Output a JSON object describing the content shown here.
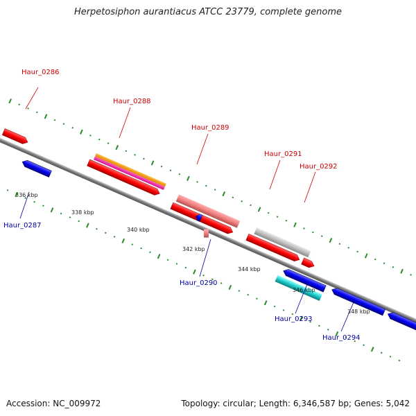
{
  "title": "Herpetosiphon aurantiacus ATCC 23779, complete genome",
  "footer": {
    "accession": "Accession: NC_009972",
    "summary": "Topology: circular; Length: 6,346,587 bp; Genes: 5,042"
  },
  "colors": {
    "forward_gene": "#ff0000",
    "reverse_gene": "#0000ff",
    "label_forward": "#cc0000",
    "label_reverse": "#000099",
    "tick_color": "#2a8a2a",
    "backbone": "#808080"
  },
  "ticks": [
    "336 kbp",
    "338 kbp",
    "340 kbp",
    "342 kbp",
    "344 kbp",
    "346 kbp",
    "348 kbp"
  ],
  "genes": [
    {
      "label": "Haur_0286",
      "strand": "forward"
    },
    {
      "label": "Haur_0287",
      "strand": "reverse"
    },
    {
      "label": "Haur_0288",
      "strand": "forward"
    },
    {
      "label": "Haur_0289",
      "strand": "forward"
    },
    {
      "label": "Haur_0290",
      "strand": "reverse"
    },
    {
      "label": "Haur_0291",
      "strand": "forward"
    },
    {
      "label": "Haur_0292",
      "strand": "forward"
    },
    {
      "label": "Haur_0293",
      "strand": "reverse"
    },
    {
      "label": "Haur_0294",
      "strand": "reverse"
    }
  ]
}
